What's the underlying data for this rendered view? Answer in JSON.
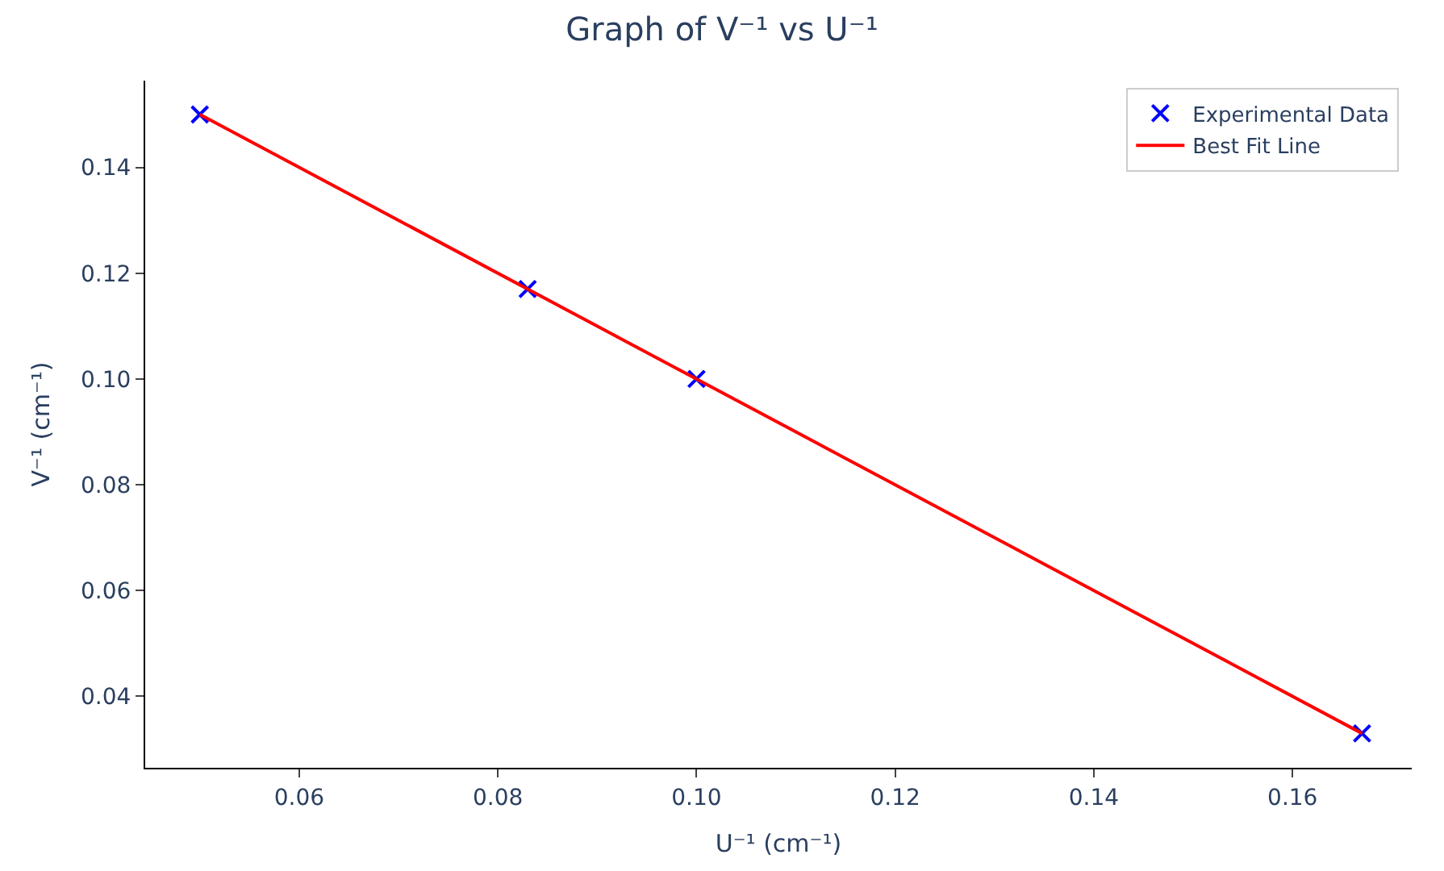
{
  "chart_data": {
    "type": "scatter",
    "title": "Graph of V⁻¹ vs U⁻¹",
    "xlabel": "U⁻¹ (cm⁻¹)",
    "ylabel": "V⁻¹ (cm⁻¹)",
    "xlim": [
      0.0445,
      0.172
    ],
    "ylim": [
      0.0265,
      0.1564
    ],
    "xticks": [
      {
        "value": 0.06,
        "label": "0.06"
      },
      {
        "value": 0.08,
        "label": "0.08"
      },
      {
        "value": 0.1,
        "label": "0.10"
      },
      {
        "value": 0.12,
        "label": "0.12"
      },
      {
        "value": 0.14,
        "label": "0.14"
      },
      {
        "value": 0.16,
        "label": "0.16"
      }
    ],
    "yticks": [
      {
        "value": 0.04,
        "label": "0.04"
      },
      {
        "value": 0.06,
        "label": "0.06"
      },
      {
        "value": 0.08,
        "label": "0.08"
      },
      {
        "value": 0.1,
        "label": "0.10"
      },
      {
        "value": 0.12,
        "label": "0.12"
      },
      {
        "value": 0.14,
        "label": "0.14"
      }
    ],
    "grid": false,
    "legend": "top right",
    "series": [
      {
        "name": "Experimental Data",
        "marker": "cross",
        "color": "#0000ff",
        "x": [
          0.05,
          0.083,
          0.1,
          0.167
        ],
        "values": [
          0.15,
          0.117,
          0.1,
          0.033
        ]
      },
      {
        "name": "Best Fit Line",
        "type": "line",
        "marker": "none",
        "line_style": "solid",
        "color": "#ff0000",
        "x": [
          0.05,
          0.167
        ],
        "values": [
          0.15,
          0.033
        ]
      }
    ]
  }
}
